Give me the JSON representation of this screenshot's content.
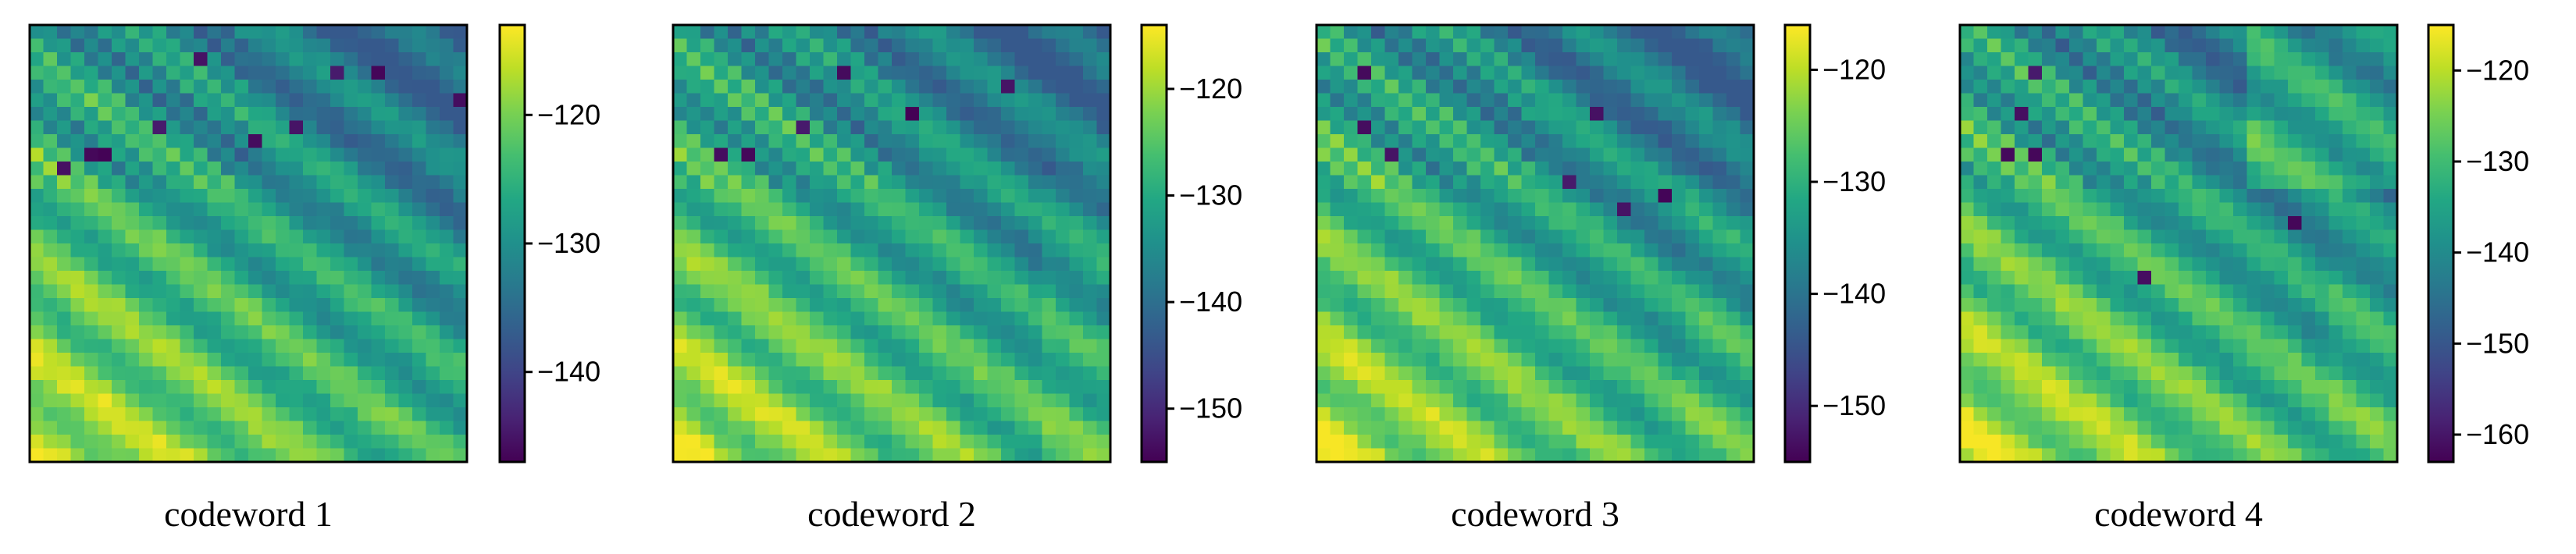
{
  "chart_data": [
    {
      "type": "heatmap",
      "title": "codeword 1",
      "colormap": "viridis",
      "grid_size": 32,
      "colorbar": {
        "vmin": -147,
        "vmax": -113,
        "ticks": [
          -120,
          -130,
          -140
        ],
        "tick_labels": [
          "−120",
          "−130",
          "−140"
        ]
      },
      "outliers": [
        [
          2,
          12
        ],
        [
          3,
          22
        ],
        [
          5,
          31
        ],
        [
          7,
          9
        ],
        [
          8,
          16
        ],
        [
          9,
          4
        ],
        [
          9,
          5
        ],
        [
          10,
          2
        ],
        [
          3,
          25
        ],
        [
          7,
          19
        ]
      ],
      "description_values": {
        "min_approx": -146,
        "max_approx": -113
      }
    },
    {
      "type": "heatmap",
      "title": "codeword 2",
      "colormap": "viridis",
      "grid_size": 32,
      "colorbar": {
        "vmin": -155,
        "vmax": -114,
        "ticks": [
          -120,
          -130,
          -140,
          -150
        ],
        "tick_labels": [
          "−120",
          "−130",
          "−140",
          "−150"
        ]
      },
      "outliers": [
        [
          3,
          12
        ],
        [
          4,
          24
        ],
        [
          7,
          9
        ],
        [
          9,
          3
        ],
        [
          9,
          5
        ],
        [
          6,
          17
        ]
      ],
      "description_values": {
        "min_approx": -154,
        "max_approx": -114
      }
    },
    {
      "type": "heatmap",
      "title": "codeword 3",
      "colormap": "viridis",
      "grid_size": 32,
      "colorbar": {
        "vmin": -155,
        "vmax": -116,
        "ticks": [
          -120,
          -130,
          -140,
          -150
        ],
        "tick_labels": [
          "−120",
          "−130",
          "−140",
          "−150"
        ]
      },
      "outliers": [
        [
          3,
          3
        ],
        [
          6,
          20
        ],
        [
          7,
          3
        ],
        [
          9,
          5
        ],
        [
          11,
          18
        ],
        [
          13,
          22
        ],
        [
          12,
          25
        ]
      ],
      "description_values": {
        "min_approx": -154,
        "max_approx": -116
      }
    },
    {
      "type": "heatmap",
      "title": "codeword 4",
      "colormap": "viridis",
      "grid_size": 32,
      "colorbar": {
        "vmin": -163,
        "vmax": -115,
        "ticks": [
          -120,
          -130,
          -140,
          -150,
          -160
        ],
        "tick_labels": [
          "−120",
          "−130",
          "−140",
          "−150",
          "−160"
        ]
      },
      "outliers": [
        [
          3,
          5
        ],
        [
          6,
          4
        ],
        [
          9,
          3
        ],
        [
          9,
          5
        ],
        [
          14,
          24
        ],
        [
          18,
          13
        ]
      ],
      "description_values": {
        "min_approx": -162,
        "max_approx": -115
      }
    }
  ]
}
